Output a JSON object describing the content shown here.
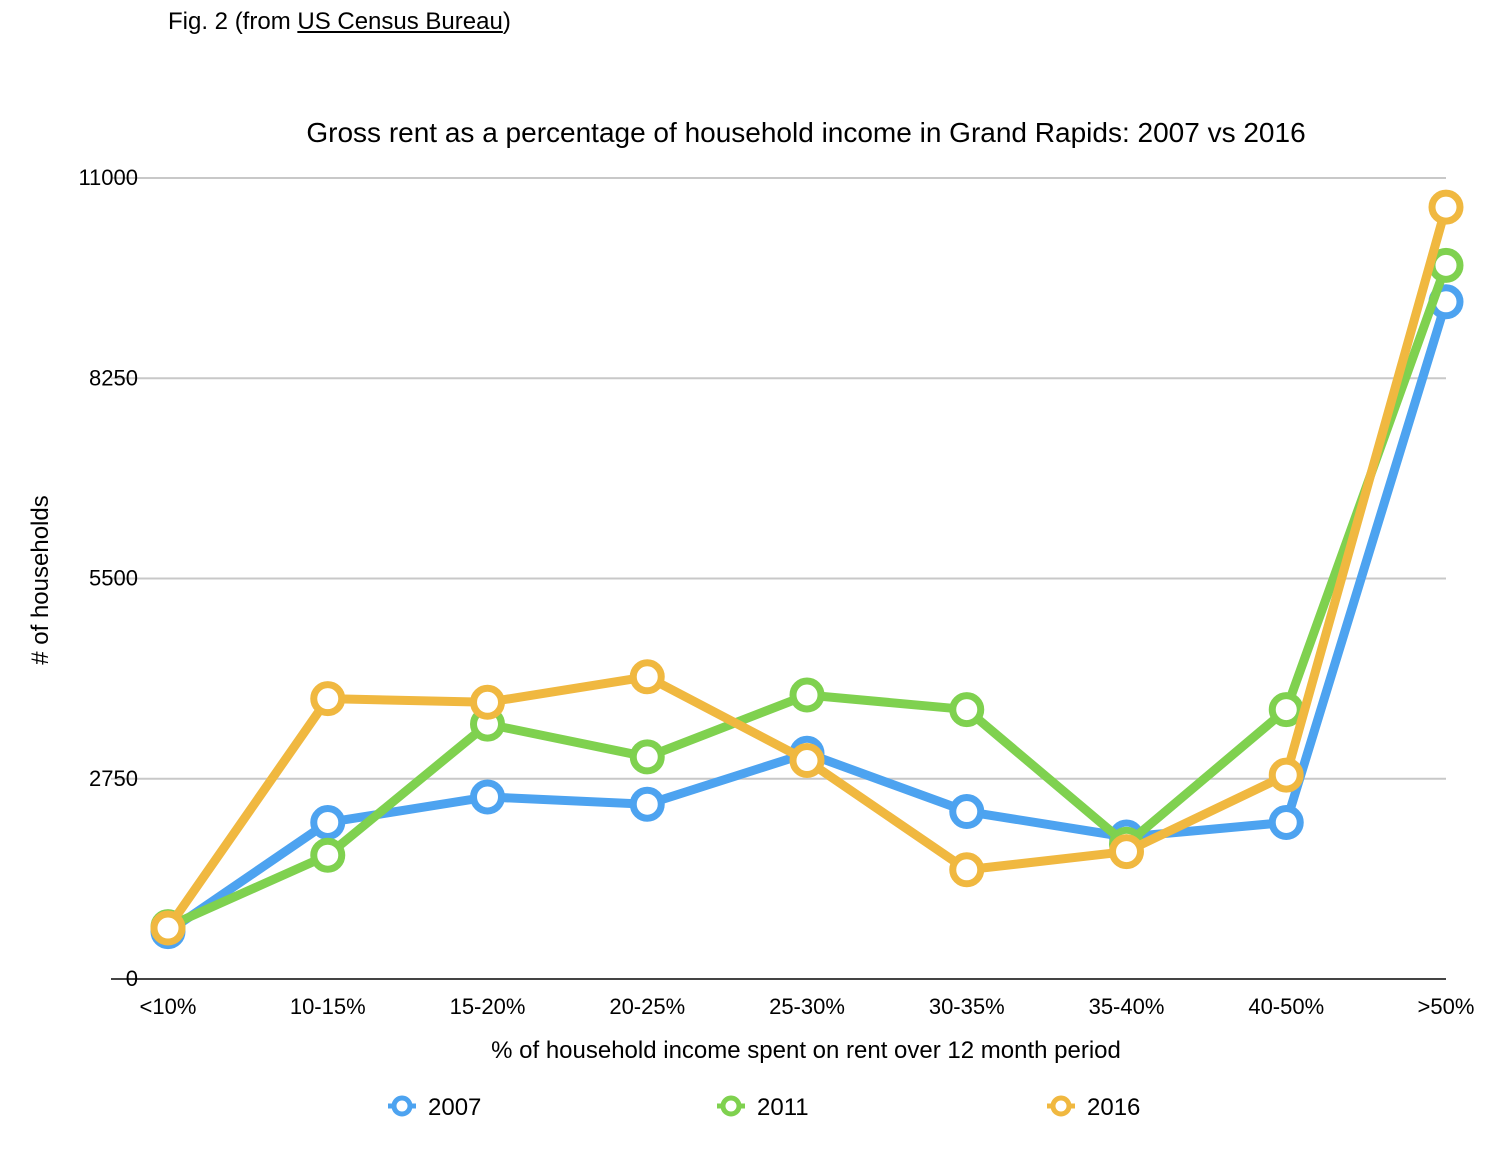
{
  "caption": {
    "prefix": "Fig. 2 (from ",
    "link_text": "US Census Bureau",
    "suffix": ")"
  },
  "chart_data": {
    "type": "line",
    "title": "Gross rent as a percentage of household income in Grand Rapids: 2007 vs 2016",
    "xlabel": "% of household income spent on rent over 12 month period",
    "ylabel": "# of households",
    "categories": [
      "<10%",
      "10-15%",
      "15-20%",
      "20-25%",
      "25-30%",
      "30-35%",
      "35-40%",
      "40-50%",
      ">50%"
    ],
    "ylim": [
      0,
      11000
    ],
    "yticks": [
      "0",
      "2750",
      "5500",
      "8250",
      "11000"
    ],
    "grid": true,
    "legend_position": "bottom",
    "series": [
      {
        "name": "2007",
        "color": "#4da3f0",
        "values": [
          650,
          2150,
          2500,
          2400,
          3100,
          2300,
          1950,
          2150,
          9300
        ]
      },
      {
        "name": "2011",
        "color": "#7fd14f",
        "values": [
          720,
          1700,
          3500,
          3050,
          3900,
          3700,
          1850,
          3700,
          9800
        ]
      },
      {
        "name": "2016",
        "color": "#f0b840",
        "values": [
          700,
          3850,
          3800,
          4150,
          3000,
          1500,
          1750,
          2800,
          10600
        ]
      }
    ]
  }
}
